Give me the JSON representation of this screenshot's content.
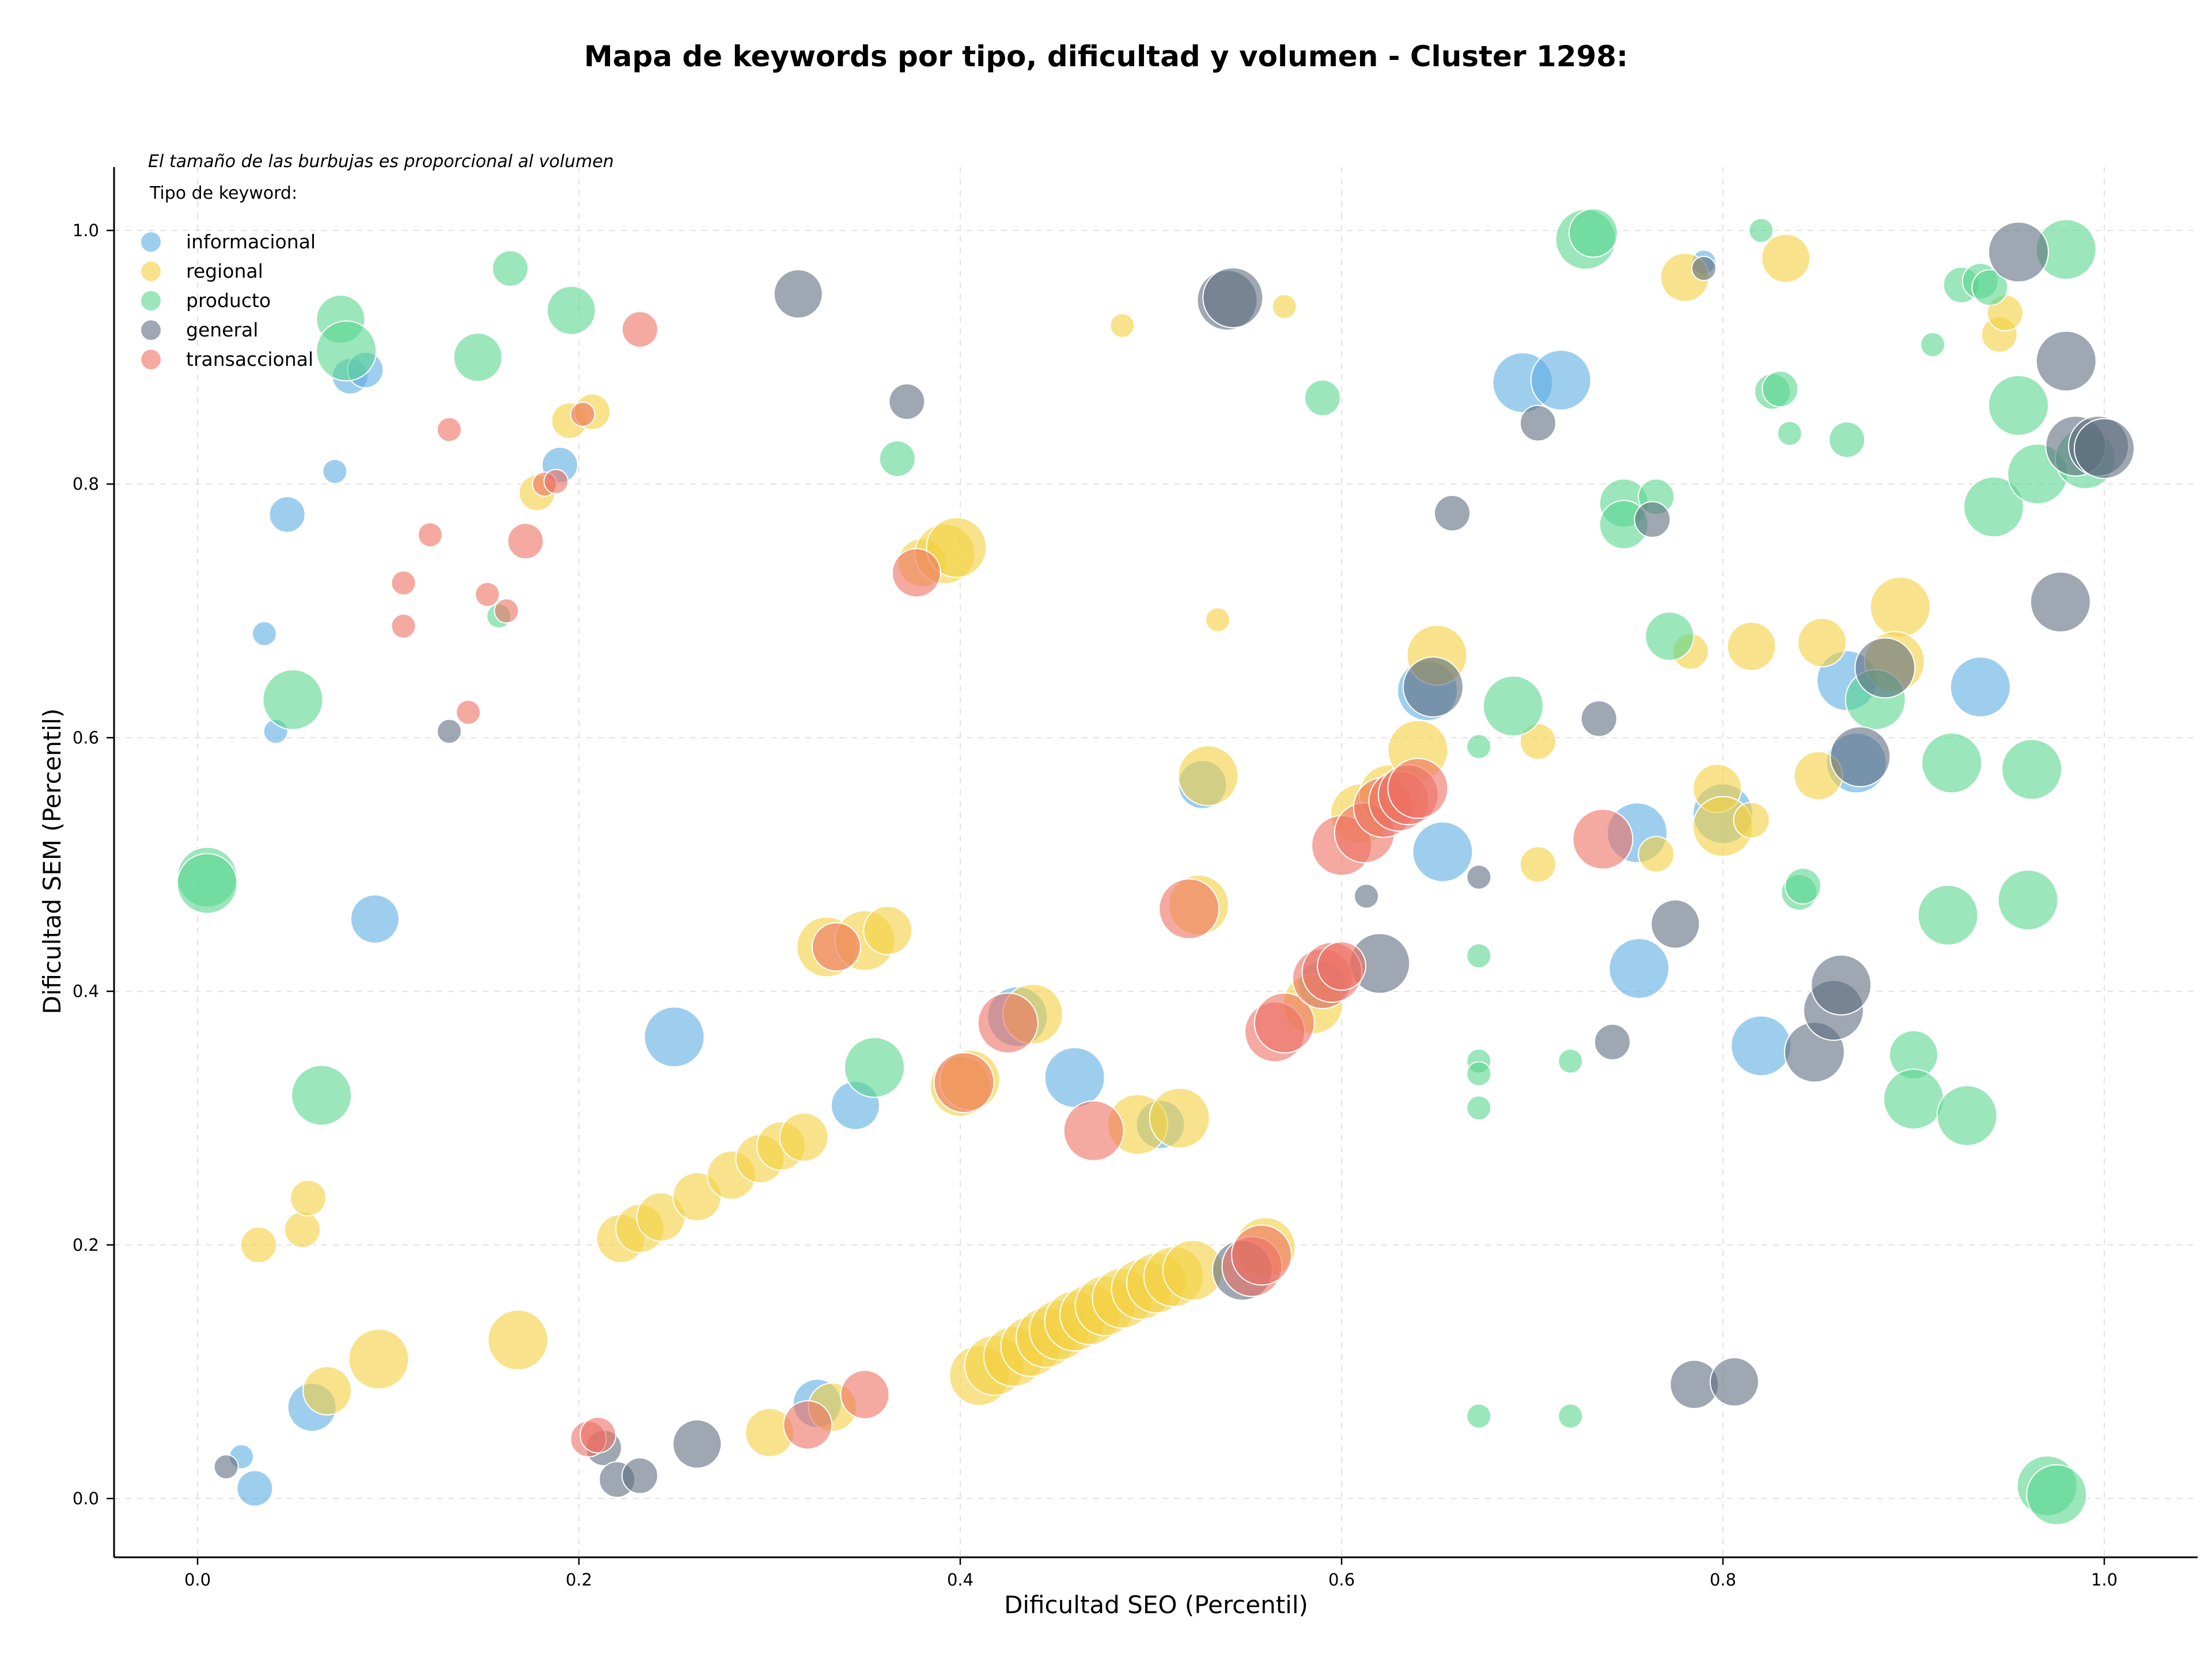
{
  "chart_data": {
    "type": "scatter",
    "title": "Mapa de keywords por tipo, dificultad y volumen - Cluster 1298:",
    "subtitle": "El tamaño de las burbujas es proporcional al volumen",
    "xlabel": "Dificultad SEO (Percentil)",
    "ylabel": "Dificultad SEM (Percentil)",
    "xlim": [
      -0.045,
      1.05
    ],
    "ylim": [
      -0.045,
      1.05
    ],
    "xticks": [
      "0.0",
      "0.2",
      "0.4",
      "0.6",
      "0.8",
      "1.0"
    ],
    "yticks": [
      "0.0",
      "0.2",
      "0.4",
      "0.6",
      "0.8",
      "1.0"
    ],
    "grid": true,
    "legend": {
      "title": "Tipo de keyword:",
      "placement": "top-left"
    },
    "series": [
      {
        "name": "informacional",
        "color": "#5dade2",
        "points": [
          [
            0.08,
            0.885,
            2
          ],
          [
            0.088,
            0.89,
            2
          ],
          [
            0.072,
            0.81,
            1
          ],
          [
            0.047,
            0.776,
            2
          ],
          [
            0.035,
            0.682,
            1
          ],
          [
            0.041,
            0.605,
            1
          ],
          [
            0.093,
            0.457,
            3
          ],
          [
            0.19,
            0.815,
            2
          ],
          [
            0.25,
            0.364,
            4
          ],
          [
            0.345,
            0.31,
            3
          ],
          [
            0.43,
            0.38,
            4
          ],
          [
            0.46,
            0.332,
            4
          ],
          [
            0.505,
            0.295,
            3
          ],
          [
            0.527,
            0.563,
            3
          ],
          [
            0.325,
            0.075,
            3
          ],
          [
            0.06,
            0.072,
            3
          ],
          [
            0.03,
            0.008,
            2
          ],
          [
            0.023,
            0.033,
            1
          ],
          [
            0.645,
            0.637,
            4
          ],
          [
            0.653,
            0.51,
            4
          ],
          [
            0.695,
            0.88,
            4
          ],
          [
            0.715,
            0.882,
            4
          ],
          [
            0.756,
            0.418,
            4
          ],
          [
            0.755,
            0.525,
            4
          ],
          [
            0.8,
            0.54,
            4
          ],
          [
            0.82,
            0.357,
            4
          ],
          [
            0.865,
            0.645,
            4
          ],
          [
            0.87,
            0.58,
            4
          ],
          [
            0.935,
            0.64,
            4
          ],
          [
            0.79,
            0.975,
            1
          ],
          [
            0.59,
            0.405,
            3
          ]
        ]
      },
      {
        "name": "regional",
        "color": "#f4d03f",
        "points": [
          [
            0.178,
            0.793,
            2
          ],
          [
            0.195,
            0.85,
            2
          ],
          [
            0.207,
            0.857,
            2
          ],
          [
            0.33,
            0.435,
            4
          ],
          [
            0.35,
            0.44,
            4
          ],
          [
            0.362,
            0.448,
            3
          ],
          [
            0.38,
            0.738,
            3
          ],
          [
            0.392,
            0.745,
            4
          ],
          [
            0.398,
            0.75,
            4
          ],
          [
            0.222,
            0.205,
            3
          ],
          [
            0.232,
            0.213,
            3
          ],
          [
            0.243,
            0.222,
            3
          ],
          [
            0.262,
            0.238,
            3
          ],
          [
            0.28,
            0.255,
            3
          ],
          [
            0.295,
            0.268,
            3
          ],
          [
            0.306,
            0.278,
            3
          ],
          [
            0.318,
            0.285,
            3
          ],
          [
            0.3,
            0.052,
            3
          ],
          [
            0.333,
            0.072,
            3
          ],
          [
            0.4,
            0.325,
            4
          ],
          [
            0.405,
            0.33,
            4
          ],
          [
            0.438,
            0.382,
            4
          ],
          [
            0.41,
            0.097,
            4
          ],
          [
            0.418,
            0.105,
            4
          ],
          [
            0.428,
            0.112,
            4
          ],
          [
            0.437,
            0.12,
            4
          ],
          [
            0.445,
            0.127,
            4
          ],
          [
            0.452,
            0.133,
            4
          ],
          [
            0.46,
            0.14,
            4
          ],
          [
            0.468,
            0.145,
            4
          ],
          [
            0.476,
            0.152,
            4
          ],
          [
            0.485,
            0.158,
            4
          ],
          [
            0.495,
            0.165,
            4
          ],
          [
            0.503,
            0.17,
            4
          ],
          [
            0.512,
            0.175,
            4
          ],
          [
            0.522,
            0.18,
            4
          ],
          [
            0.56,
            0.198,
            4
          ],
          [
            0.493,
            0.295,
            4
          ],
          [
            0.515,
            0.3,
            4
          ],
          [
            0.525,
            0.468,
            4
          ],
          [
            0.53,
            0.57,
            4
          ],
          [
            0.485,
            0.925,
            1
          ],
          [
            0.535,
            0.693,
            1
          ],
          [
            0.57,
            0.94,
            1
          ],
          [
            0.585,
            0.39,
            4
          ],
          [
            0.61,
            0.54,
            4
          ],
          [
            0.625,
            0.555,
            4
          ],
          [
            0.64,
            0.59,
            4
          ],
          [
            0.65,
            0.665,
            4
          ],
          [
            0.703,
            0.5,
            2
          ],
          [
            0.703,
            0.597,
            2
          ],
          [
            0.765,
            0.508,
            2
          ],
          [
            0.78,
            0.963,
            3
          ],
          [
            0.783,
            0.668,
            2
          ],
          [
            0.797,
            0.56,
            3
          ],
          [
            0.8,
            0.53,
            4
          ],
          [
            0.815,
            0.535,
            2
          ],
          [
            0.815,
            0.672,
            3
          ],
          [
            0.833,
            0.978,
            3
          ],
          [
            0.85,
            0.57,
            3
          ],
          [
            0.852,
            0.675,
            3
          ],
          [
            0.893,
            0.703,
            4
          ],
          [
            0.89,
            0.66,
            4
          ],
          [
            0.945,
            0.918,
            2
          ],
          [
            0.948,
            0.935,
            2
          ],
          [
            0.032,
            0.2,
            2
          ],
          [
            0.055,
            0.212,
            2
          ],
          [
            0.058,
            0.237,
            2
          ],
          [
            0.068,
            0.085,
            3
          ],
          [
            0.095,
            0.11,
            4
          ],
          [
            0.168,
            0.125,
            4
          ]
        ]
      },
      {
        "name": "producto",
        "color": "#58d68d",
        "points": [
          [
            0.075,
            0.93,
            3
          ],
          [
            0.078,
            0.905,
            4
          ],
          [
            0.147,
            0.9,
            3
          ],
          [
            0.164,
            0.97,
            2
          ],
          [
            0.196,
            0.937,
            3
          ],
          [
            0.05,
            0.63,
            4
          ],
          [
            0.158,
            0.696,
            1
          ],
          [
            0.005,
            0.49,
            4
          ],
          [
            0.005,
            0.485,
            4
          ],
          [
            0.065,
            0.318,
            4
          ],
          [
            0.355,
            0.34,
            4
          ],
          [
            0.367,
            0.82,
            2
          ],
          [
            0.59,
            0.868,
            2
          ],
          [
            0.672,
            0.593,
            1
          ],
          [
            0.69,
            0.625,
            4
          ],
          [
            0.672,
            0.428,
            1
          ],
          [
            0.672,
            0.345,
            1
          ],
          [
            0.672,
            0.335,
            1
          ],
          [
            0.672,
            0.308,
            1
          ],
          [
            0.72,
            0.345,
            1
          ],
          [
            0.672,
            0.065,
            1
          ],
          [
            0.72,
            0.065,
            1
          ],
          [
            0.728,
            0.993,
            4
          ],
          [
            0.732,
            0.998,
            3
          ],
          [
            0.748,
            0.785,
            3
          ],
          [
            0.748,
            0.768,
            3
          ],
          [
            0.765,
            0.79,
            2
          ],
          [
            0.772,
            0.68,
            3
          ],
          [
            0.82,
            1.0,
            1
          ],
          [
            0.826,
            0.873,
            2
          ],
          [
            0.83,
            0.875,
            2
          ],
          [
            0.835,
            0.84,
            1
          ],
          [
            0.84,
            0.478,
            2
          ],
          [
            0.842,
            0.483,
            2
          ],
          [
            0.865,
            0.835,
            2
          ],
          [
            0.88,
            0.63,
            4
          ],
          [
            0.9,
            0.35,
            3
          ],
          [
            0.9,
            0.315,
            4
          ],
          [
            0.91,
            0.91,
            1
          ],
          [
            0.918,
            0.46,
            4
          ],
          [
            0.92,
            0.58,
            4
          ],
          [
            0.925,
            0.957,
            2
          ],
          [
            0.928,
            0.302,
            4
          ],
          [
            0.935,
            0.96,
            2
          ],
          [
            0.94,
            0.955,
            2
          ],
          [
            0.942,
            0.782,
            4
          ],
          [
            0.955,
            0.862,
            4
          ],
          [
            0.96,
            0.472,
            4
          ],
          [
            0.962,
            0.575,
            4
          ],
          [
            0.965,
            0.808,
            4
          ],
          [
            0.97,
            0.01,
            4
          ],
          [
            0.975,
            0.003,
            4
          ],
          [
            0.98,
            0.985,
            4
          ],
          [
            0.99,
            0.82,
            4
          ]
        ]
      },
      {
        "name": "general",
        "color": "#5d6d7e",
        "points": [
          [
            0.315,
            0.95,
            3
          ],
          [
            0.372,
            0.865,
            2
          ],
          [
            0.132,
            0.605,
            1
          ],
          [
            0.015,
            0.025,
            1
          ],
          [
            0.213,
            0.04,
            2
          ],
          [
            0.22,
            0.015,
            2
          ],
          [
            0.232,
            0.018,
            2
          ],
          [
            0.262,
            0.043,
            3
          ],
          [
            0.54,
            0.945,
            4
          ],
          [
            0.543,
            0.947,
            4
          ],
          [
            0.548,
            0.18,
            4
          ],
          [
            0.613,
            0.475,
            1
          ],
          [
            0.62,
            0.422,
            4
          ],
          [
            0.648,
            0.64,
            4
          ],
          [
            0.658,
            0.777,
            2
          ],
          [
            0.672,
            0.49,
            1
          ],
          [
            0.703,
            0.848,
            2
          ],
          [
            0.735,
            0.615,
            2
          ],
          [
            0.742,
            0.36,
            2
          ],
          [
            0.763,
            0.772,
            2
          ],
          [
            0.775,
            0.453,
            3
          ],
          [
            0.785,
            0.09,
            3
          ],
          [
            0.79,
            0.97,
            1
          ],
          [
            0.806,
            0.092,
            3
          ],
          [
            0.848,
            0.352,
            4
          ],
          [
            0.858,
            0.385,
            4
          ],
          [
            0.862,
            0.405,
            4
          ],
          [
            0.872,
            0.585,
            4
          ],
          [
            0.885,
            0.655,
            4
          ],
          [
            0.955,
            0.983,
            4
          ],
          [
            0.977,
            0.707,
            4
          ],
          [
            0.98,
            0.897,
            4
          ],
          [
            0.985,
            0.83,
            4
          ],
          [
            0.997,
            0.83,
            4
          ],
          [
            1.0,
            0.828,
            4
          ]
        ]
      },
      {
        "name": "transaccional",
        "color": "#ec7063",
        "points": [
          [
            0.232,
            0.922,
            2
          ],
          [
            0.132,
            0.843,
            1
          ],
          [
            0.202,
            0.855,
            1
          ],
          [
            0.182,
            0.8,
            1
          ],
          [
            0.188,
            0.802,
            1
          ],
          [
            0.122,
            0.76,
            1
          ],
          [
            0.172,
            0.755,
            2
          ],
          [
            0.108,
            0.722,
            1
          ],
          [
            0.152,
            0.713,
            1
          ],
          [
            0.162,
            0.7,
            1
          ],
          [
            0.108,
            0.688,
            1
          ],
          [
            0.142,
            0.62,
            1
          ],
          [
            0.335,
            0.435,
            3
          ],
          [
            0.377,
            0.73,
            3
          ],
          [
            0.402,
            0.328,
            4
          ],
          [
            0.425,
            0.375,
            4
          ],
          [
            0.47,
            0.29,
            4
          ],
          [
            0.52,
            0.465,
            4
          ],
          [
            0.553,
            0.183,
            4
          ],
          [
            0.558,
            0.192,
            4
          ],
          [
            0.565,
            0.368,
            4
          ],
          [
            0.57,
            0.375,
            4
          ],
          [
            0.59,
            0.41,
            4
          ],
          [
            0.595,
            0.415,
            4
          ],
          [
            0.6,
            0.42,
            3
          ],
          [
            0.6,
            0.515,
            4
          ],
          [
            0.612,
            0.525,
            4
          ],
          [
            0.622,
            0.545,
            4
          ],
          [
            0.63,
            0.55,
            4
          ],
          [
            0.635,
            0.555,
            4
          ],
          [
            0.64,
            0.56,
            4
          ],
          [
            0.737,
            0.52,
            4
          ],
          [
            0.35,
            0.082,
            3
          ],
          [
            0.32,
            0.058,
            3
          ],
          [
            0.205,
            0.047,
            2
          ],
          [
            0.21,
            0.05,
            2
          ]
        ]
      }
    ]
  }
}
